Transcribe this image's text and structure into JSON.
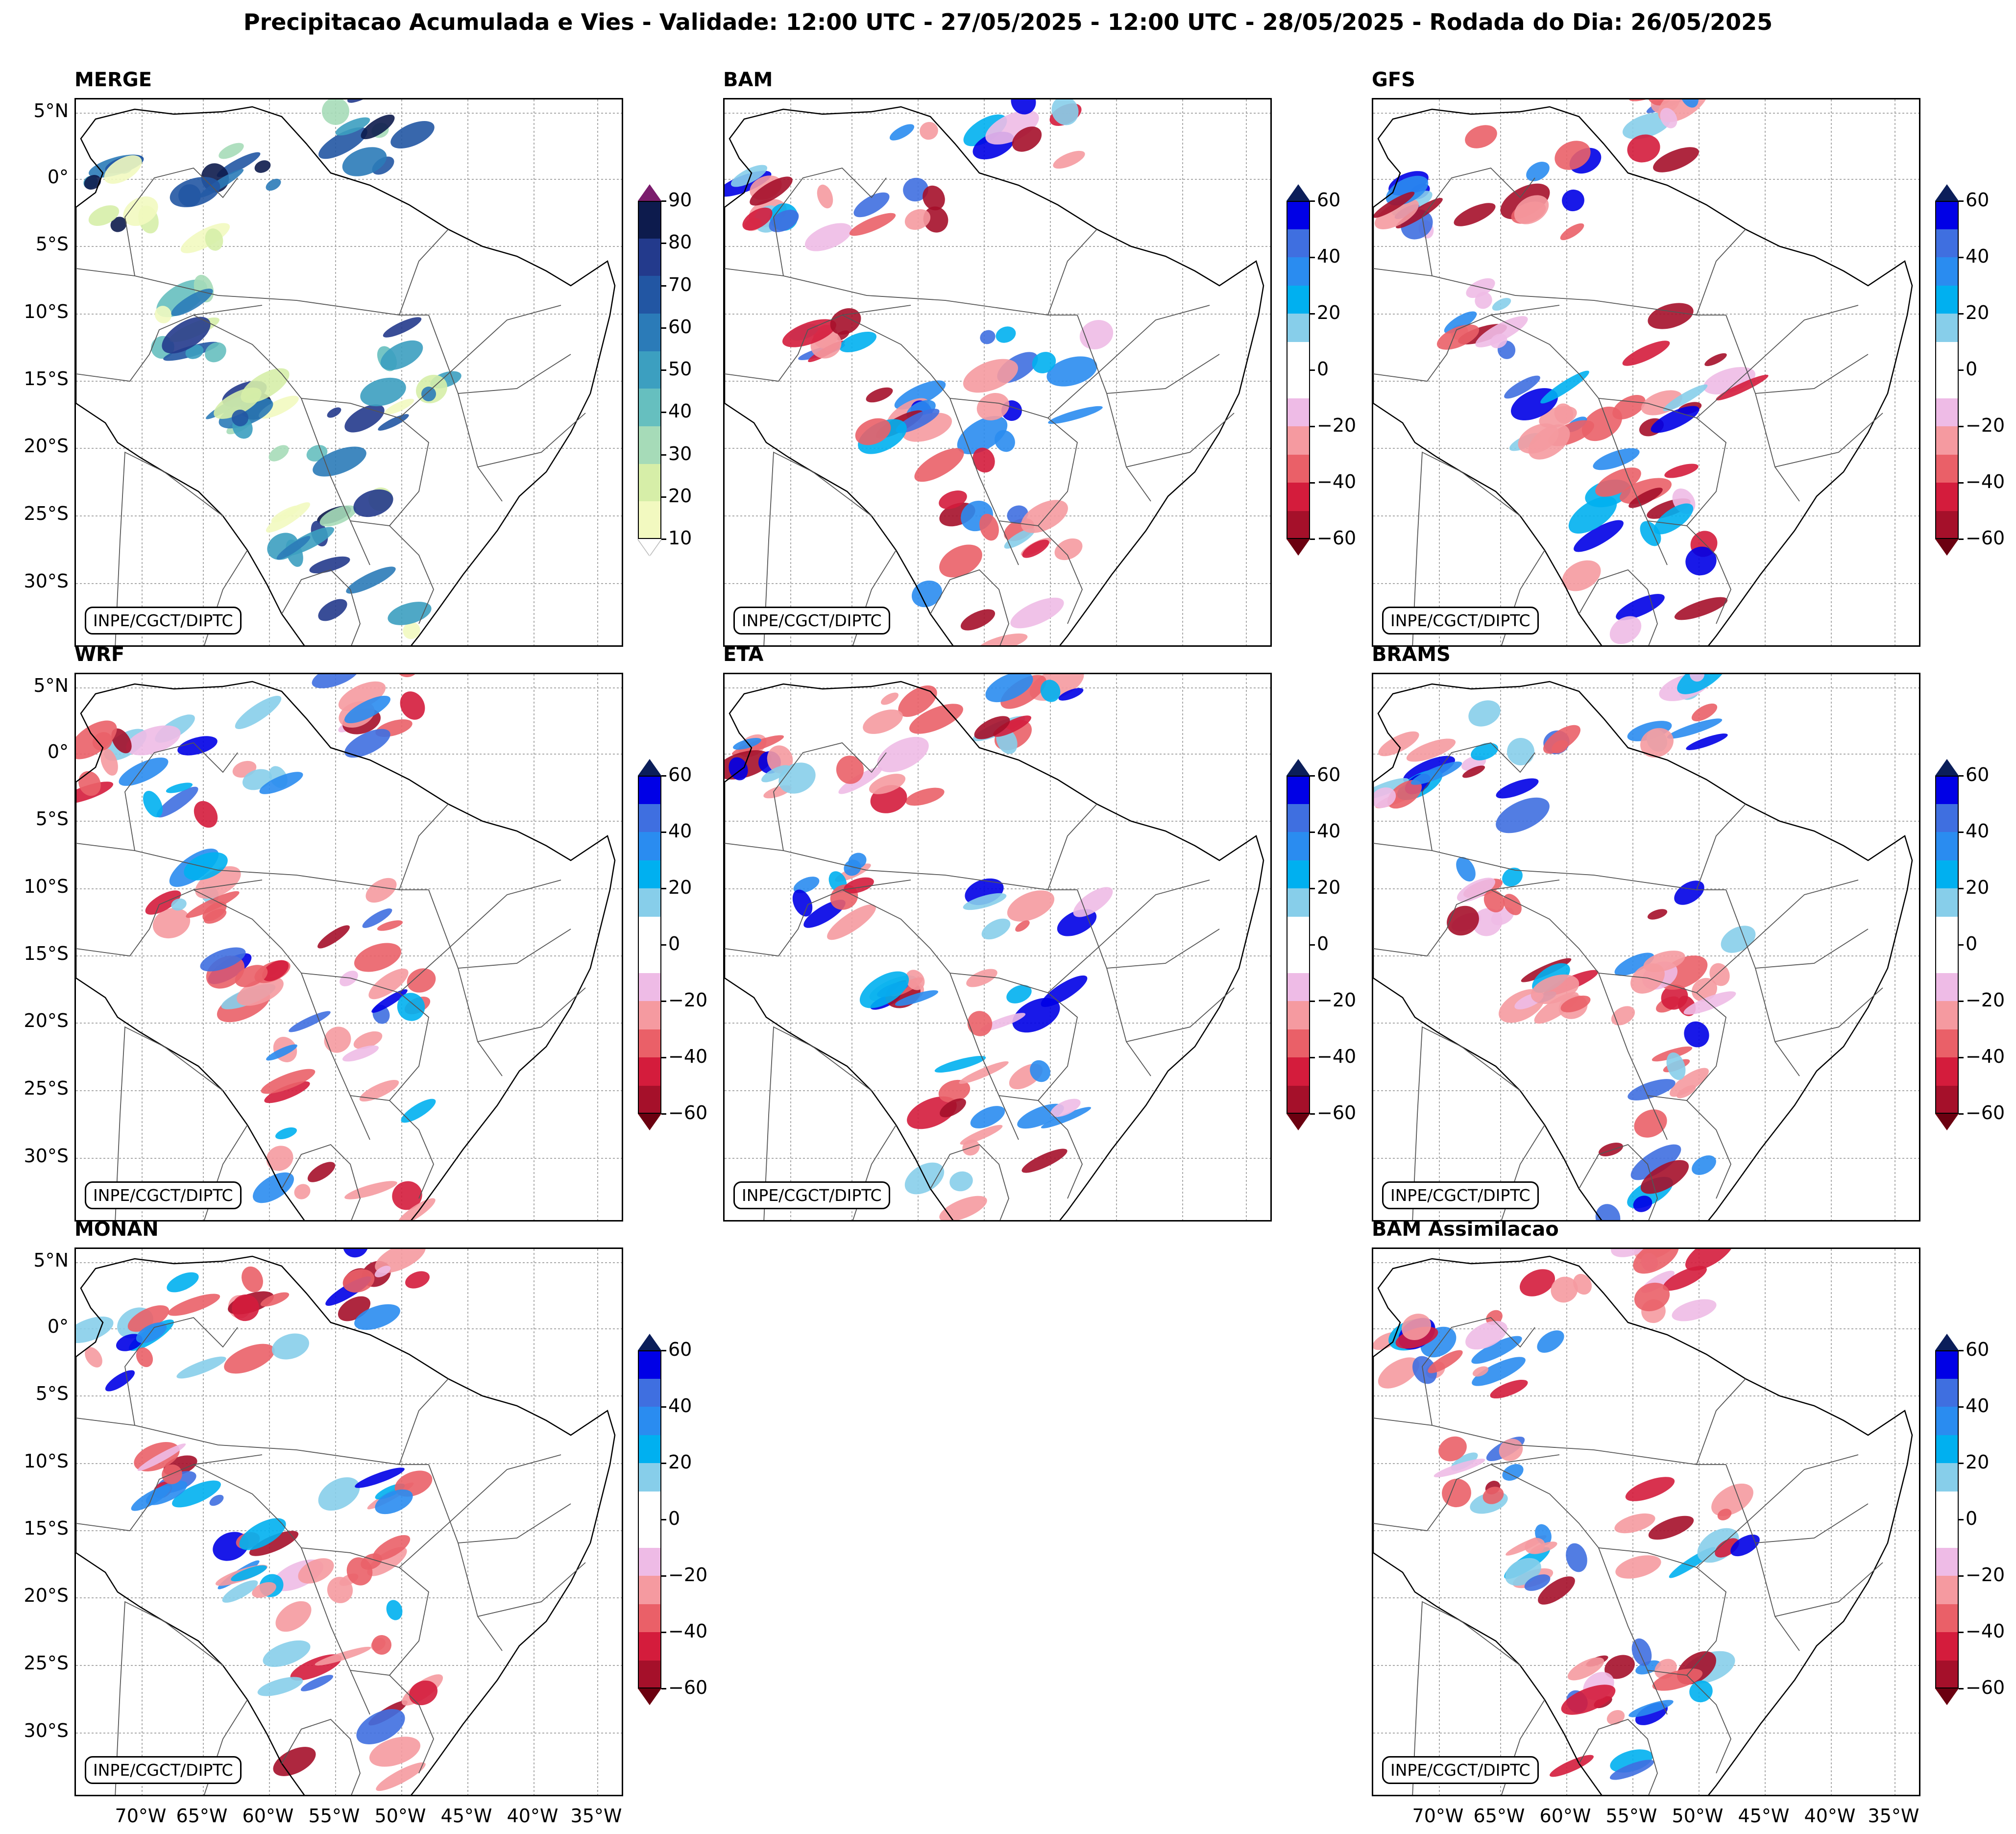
{
  "title": "Precipitacao Acumulada e Vies - Validade: 12:00 UTC - 27/05/2025 - 12:00 UTC - 28/05/2025 - Rodada do Dia: 26/05/2025",
  "credit": "INPE/CGCT/DIPTC",
  "lat_labels": [
    "5°N",
    "0°",
    "5°S",
    "10°S",
    "15°S",
    "20°S",
    "25°S",
    "30°S"
  ],
  "lon_labels": [
    "70°W",
    "65°W",
    "60°W",
    "55°W",
    "50°W",
    "45°W",
    "40°W",
    "35°W"
  ],
  "panels": [
    {
      "name": "MERGE",
      "type": "precip"
    },
    {
      "name": "BAM",
      "type": "bias"
    },
    {
      "name": "GFS",
      "type": "bias"
    },
    {
      "name": "WRF",
      "type": "bias"
    },
    {
      "name": "ETA",
      "type": "bias"
    },
    {
      "name": "BRAMS",
      "type": "bias"
    },
    {
      "name": "MONAN",
      "type": "bias"
    },
    {
      "name": "BAM Assimilacao",
      "type": "bias"
    }
  ],
  "colorbars": {
    "precip": {
      "ticks": [
        "90",
        "80",
        "70",
        "60",
        "50",
        "40",
        "30",
        "20",
        "10"
      ],
      "colors": [
        "#0d1b4d",
        "#233a8c",
        "#2256a3",
        "#2b7bb8",
        "#3c9fc0",
        "#66bfbf",
        "#a6dbb8",
        "#d6eea8",
        "#f2f9c0"
      ],
      "over_color": "#7b1c6d",
      "under_color": "#ffffff"
    },
    "bias": {
      "ticks": [
        "60",
        "40",
        "20",
        "0",
        "-20",
        "-40",
        "-60"
      ],
      "colors": [
        "#0000e6",
        "#3f6fe0",
        "#2a8cf0",
        "#00b0f0",
        "#87ceea",
        "#ffffff",
        "#ffffff",
        "#eebbe6",
        "#f59aa0",
        "#ea6068",
        "#d41c3c",
        "#a5102a"
      ],
      "over_color": "#0b1e5a",
      "under_color": "#6b0010"
    }
  }
}
